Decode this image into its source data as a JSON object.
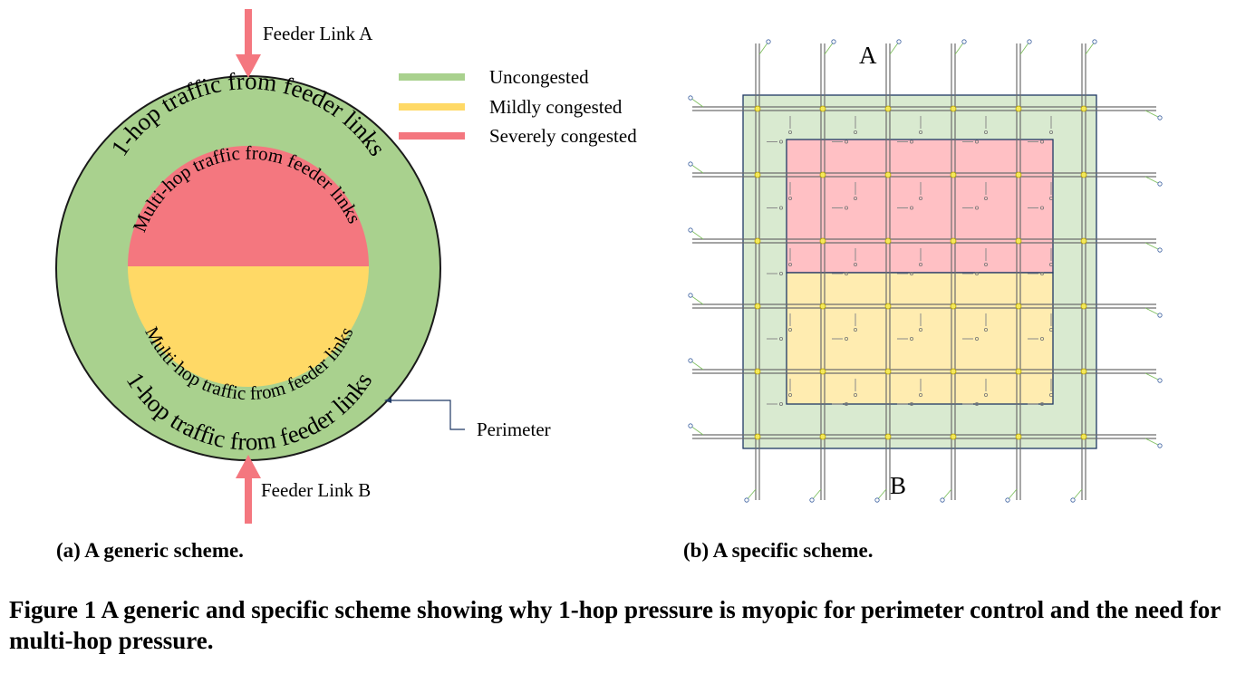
{
  "panel_a": {
    "feeder_link_a": "Feeder Link A",
    "feeder_link_b": "Feeder Link B",
    "perimeter": "Perimeter",
    "outer_top": "1-hop traffic from feeder links",
    "outer_bottom": "1-hop traffic from feeder links",
    "inner_top": "Multi-hop traffic from feeder links",
    "inner_bottom": "Multi-hop traffic from feeder links",
    "legend": [
      {
        "label": "Uncongested",
        "color": "#a9d18e"
      },
      {
        "label": "Mildly congested",
        "color": "#ffd966"
      },
      {
        "label": "Severely congested",
        "color": "#f4777f"
      }
    ],
    "caption": "(a) A generic scheme."
  },
  "panel_b": {
    "label_a": "A",
    "label_b": "B",
    "caption": "(b) A specific scheme."
  },
  "figure_caption": "Figure 1 A generic and specific scheme showing why 1-hop pressure is myopic for perimeter control and the need for multi-hop pressure.",
  "colors": {
    "uncongested": "#a9d18e",
    "mild": "#ffd966",
    "severe": "#f4777f",
    "arrow": "#f4777f",
    "perimeter_line": "#1f3864"
  }
}
